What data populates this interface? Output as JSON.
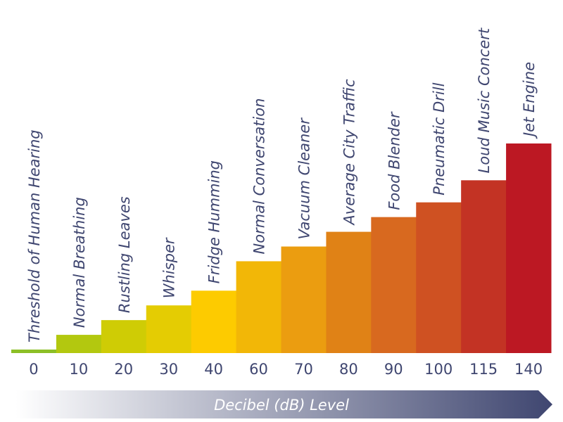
{
  "chart_data": {
    "type": "bar",
    "title": "",
    "xlabel": "Decibel (dB) Level",
    "ylabel": "",
    "categories": [
      "Threshold of Human Hearing",
      "Normal Breathing",
      "Rustling Leaves",
      "Whisper",
      "Fridge Humming",
      "Normal Conversation",
      "Vacuum Cleaner",
      "Average City Traffic",
      "Food Blender",
      "Pneumatic Drill",
      "Loud Music Concert",
      "Jet Engine"
    ],
    "tick_labels": [
      "0",
      "10",
      "20",
      "30",
      "40",
      "60",
      "70",
      "80",
      "90",
      "100",
      "115",
      "140"
    ],
    "values": [
      0,
      10,
      20,
      30,
      40,
      60,
      70,
      80,
      90,
      100,
      115,
      140
    ],
    "colors": [
      "#8cbf26",
      "#b3c80f",
      "#cfcc05",
      "#e4cc03",
      "#fdcb00",
      "#f2b707",
      "#eb9d10",
      "#e08216",
      "#d8691f",
      "#cf5122",
      "#c33324",
      "#bc1823"
    ],
    "ylim": [
      0,
      140
    ],
    "grid": false,
    "legend": "none",
    "axis_arrow_gradient": [
      "#ffffff",
      "#3f4670"
    ]
  }
}
